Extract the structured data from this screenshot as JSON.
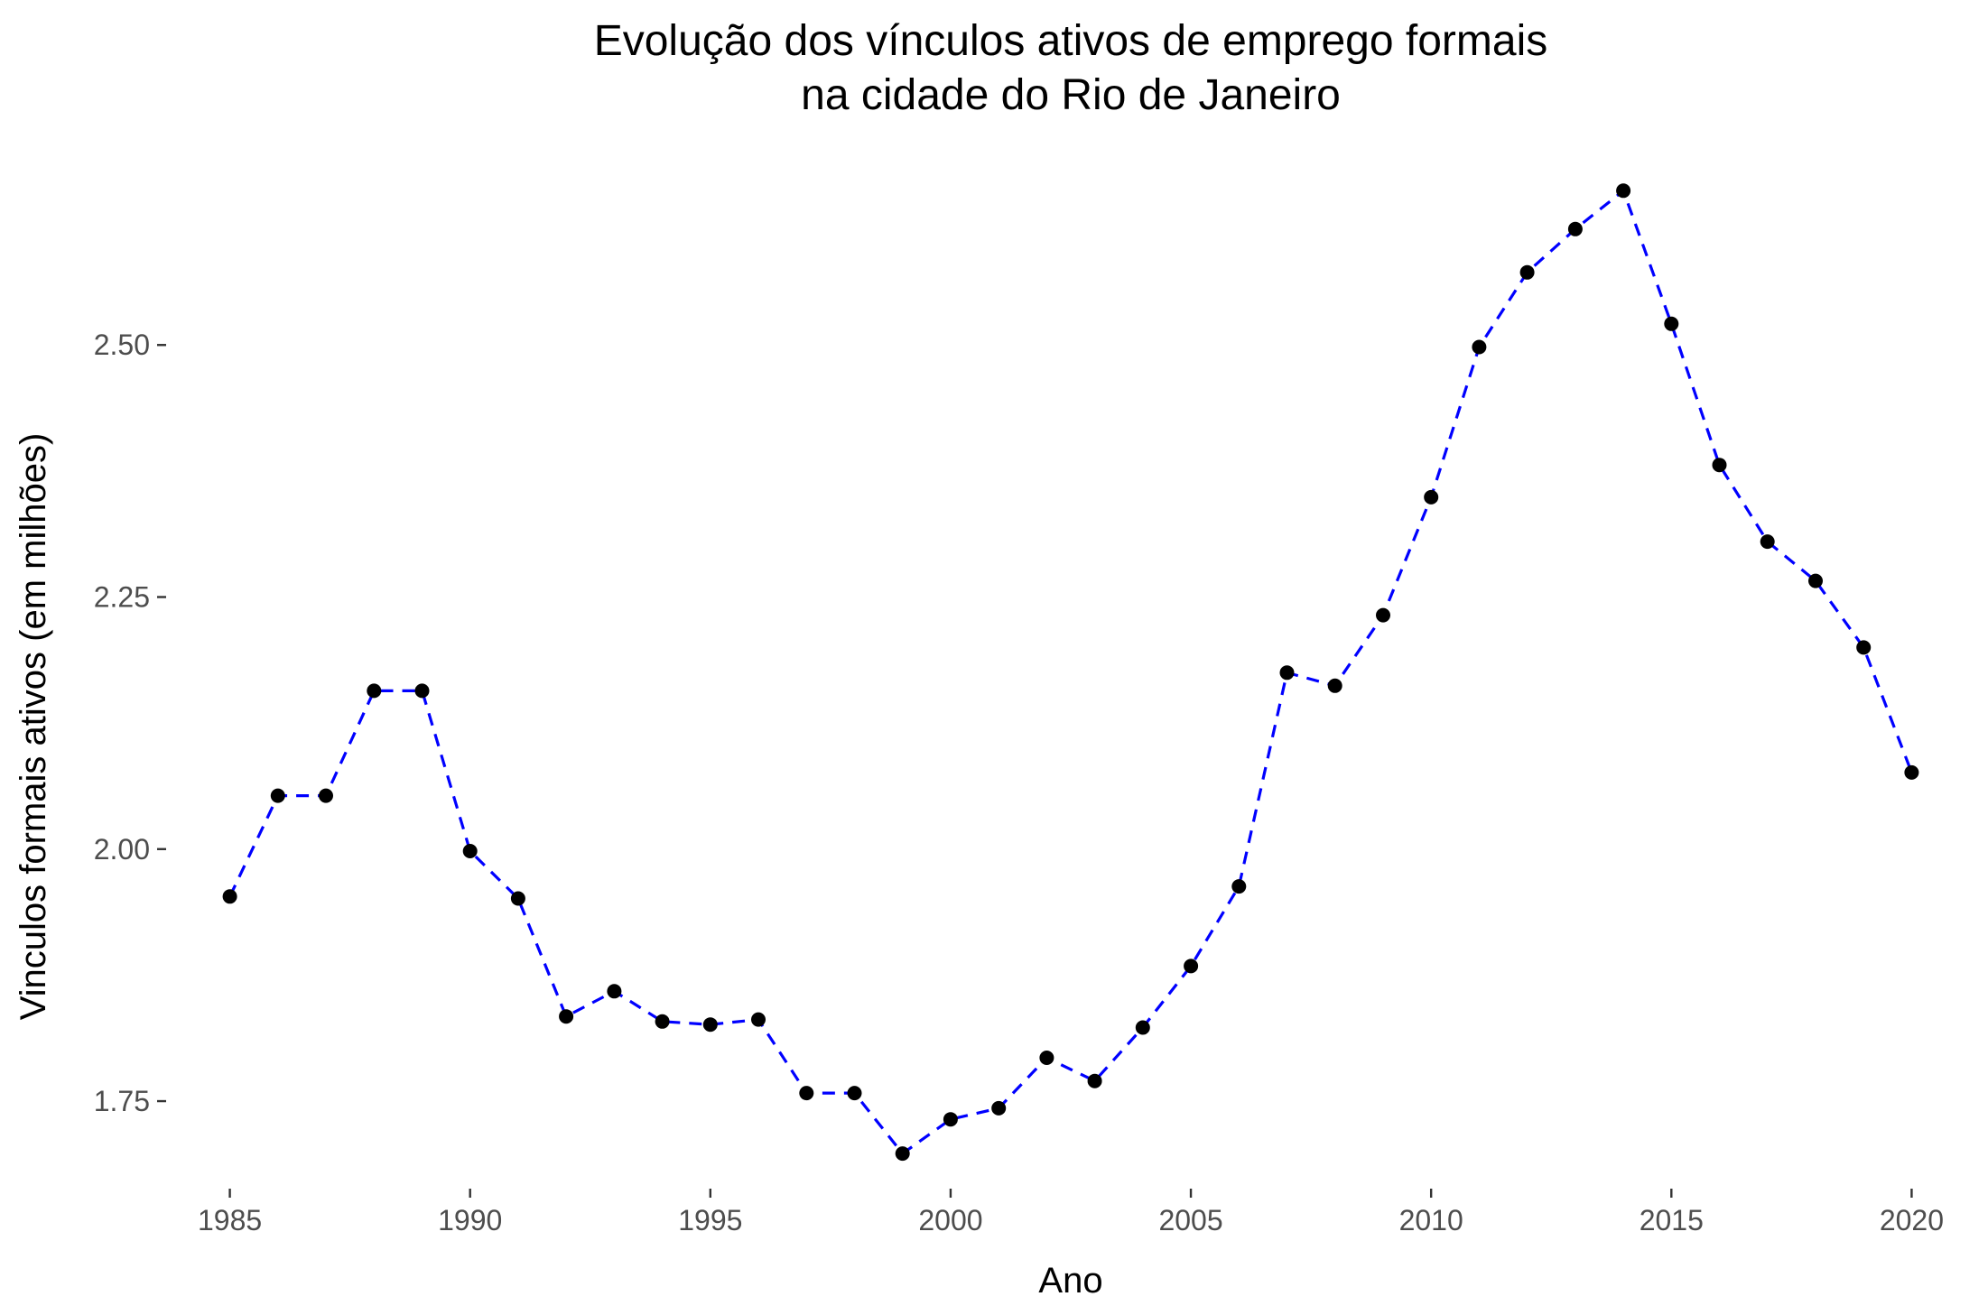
{
  "chart_data": {
    "type": "line",
    "title_lines": [
      "Evolução dos vínculos ativos de emprego formais",
      "na cidade do Rio de Janeiro"
    ],
    "xlabel": "Ano",
    "ylabel": "Vinculos formais ativos (em milhões)",
    "x_ticks": [
      1985,
      1990,
      1995,
      2000,
      2005,
      2010,
      2015,
      2020
    ],
    "y_ticks": [
      "1.75",
      "2.00",
      "2.25",
      "2.50"
    ],
    "xlim": [
      1984.2,
      2020.8
    ],
    "ylim": [
      1.665,
      2.69
    ],
    "grid": false,
    "line_style": "dashed",
    "line_color": "#0000ff",
    "point_color": "#000000",
    "x": [
      1985,
      1986,
      1987,
      1988,
      1989,
      1990,
      1991,
      1992,
      1993,
      1994,
      1995,
      1996,
      1997,
      1998,
      1999,
      2000,
      2001,
      2002,
      2003,
      2004,
      2005,
      2006,
      2007,
      2008,
      2009,
      2010,
      2011,
      2012,
      2013,
      2014,
      2015,
      2016,
      2017,
      2018,
      2019,
      2020
    ],
    "values": [
      1.953,
      2.053,
      2.053,
      2.157,
      2.157,
      1.998,
      1.951,
      1.834,
      1.859,
      1.829,
      1.826,
      1.831,
      1.758,
      1.758,
      1.698,
      1.732,
      1.743,
      1.793,
      1.77,
      1.823,
      1.884,
      1.963,
      2.175,
      2.162,
      2.232,
      2.349,
      2.498,
      2.572,
      2.615,
      2.653,
      2.521,
      2.381,
      2.305,
      2.266,
      2.2,
      2.076
    ]
  }
}
